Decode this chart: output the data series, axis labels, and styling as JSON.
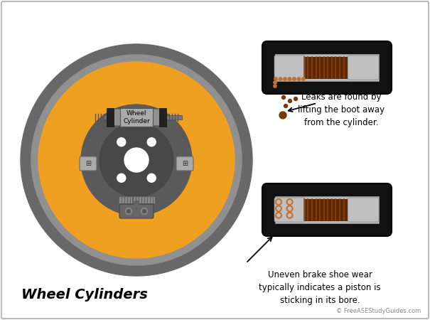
{
  "bg_color": "#ffffff",
  "border_color": "#bbbbbb",
  "title": "Wheel Cylinders",
  "copyright": "© FreeASEStudyGuides.com",
  "text_leak": "Leaks are found by\nlifting the boot away\nfrom the cylinder.",
  "text_stick": "Uneven brake shoe wear\ntypically indicates a piston is\nsticking in its bore.",
  "drum_outer_color": "#686868",
  "drum_ring_color": "#909090",
  "shoe_color": "#f0a020",
  "hub_color": "#5a5a5a",
  "hub_dark": "#484848",
  "wc_gray": "#909090",
  "wc_dark": "#333333",
  "spring_gray": "#888888",
  "leak_drop_color": "#7a3a08",
  "leak_particle_color": "#c07030",
  "stick_ring_color": "#c07030",
  "cyl_black": "#111111",
  "cyl_bore": "#b8b8b8",
  "cyl_spring_bg": "#5c2800",
  "cyl_spring_line": "#8B4010",
  "cyl_piston": "#c0c0c0",
  "cyl_boot": "#c0c0c0"
}
